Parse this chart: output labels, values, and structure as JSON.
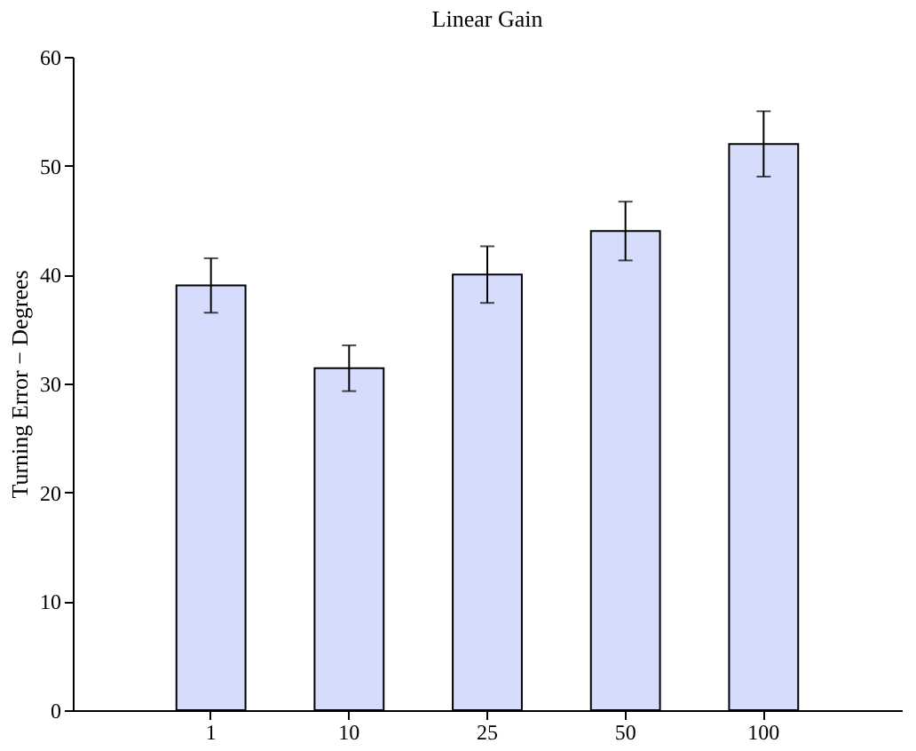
{
  "chart_data": {
    "type": "bar",
    "title": "Linear Gain",
    "ylabel": "Turning Error − Degrees",
    "categories": [
      "1",
      "10",
      "25",
      "50",
      "100"
    ],
    "values": [
      39,
      31.4,
      40,
      44,
      52
    ],
    "errors": [
      2.5,
      2.1,
      2.6,
      2.7,
      3.0
    ],
    "color": "#d6dcfc",
    "ylim": [
      0,
      60
    ],
    "yticks": [
      0,
      10,
      20,
      30,
      40,
      50,
      60
    ],
    "grid": false
  }
}
